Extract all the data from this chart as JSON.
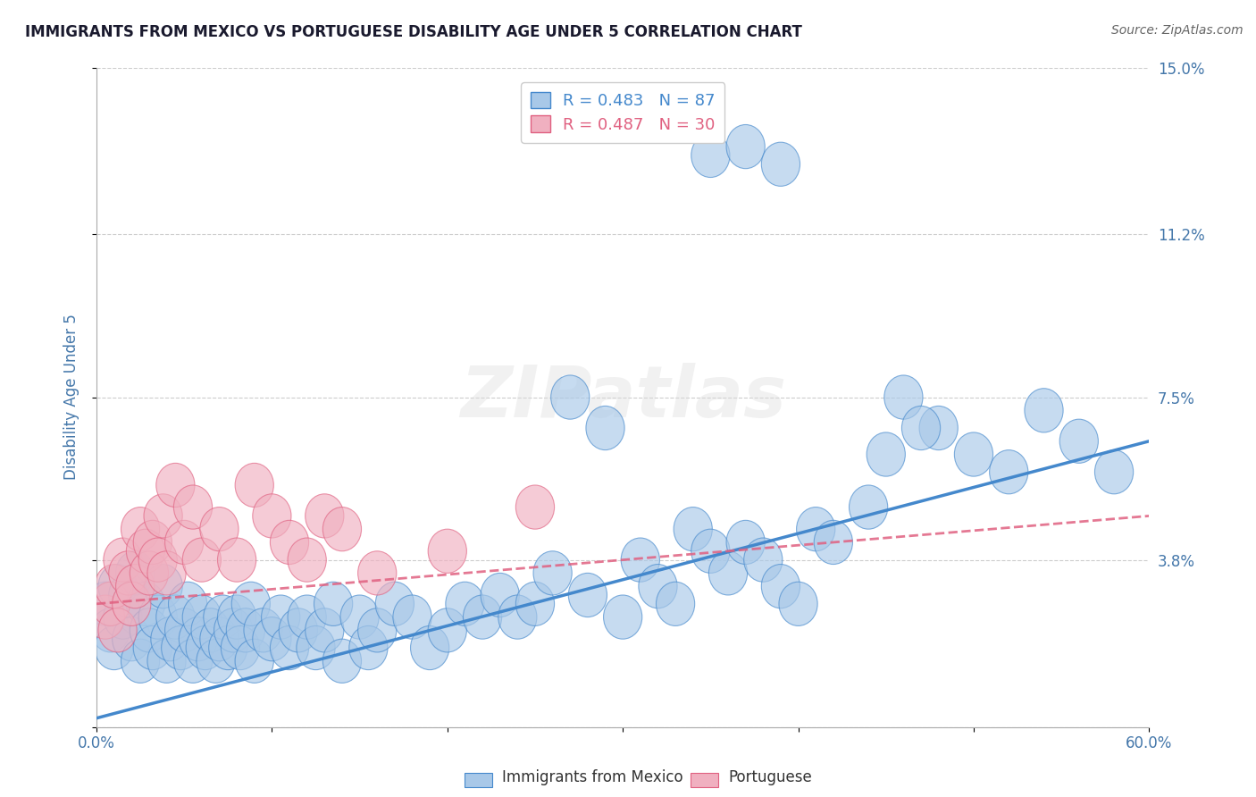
{
  "title": "IMMIGRANTS FROM MEXICO VS PORTUGUESE DISABILITY AGE UNDER 5 CORRELATION CHART",
  "source": "Source: ZipAtlas.com",
  "ylabel": "Disability Age Under 5",
  "legend_label1": "Immigrants from Mexico",
  "legend_label2": "Portuguese",
  "legend_r1": "R = 0.483",
  "legend_n1": "N = 87",
  "legend_r2": "R = 0.487",
  "legend_n2": "N = 30",
  "xlim": [
    0.0,
    0.6
  ],
  "ylim": [
    0.0,
    0.15
  ],
  "yticks": [
    0.0,
    0.038,
    0.075,
    0.112,
    0.15
  ],
  "ytick_labels": [
    "",
    "3.8%",
    "7.5%",
    "11.2%",
    "15.0%"
  ],
  "xtick_labels_show": [
    "0.0%",
    "60.0%"
  ],
  "xtick_positions_show": [
    0.0,
    0.6
  ],
  "color_blue": "#A8C8E8",
  "color_pink": "#F0B0C0",
  "line_color_blue": "#4488CC",
  "line_color_pink": "#E06080",
  "background_color": "#FFFFFF",
  "grid_color": "#CCCCCC",
  "axis_label_color": "#4477AA",
  "watermark": "ZIPatlas",
  "blue_dots_x": [
    0.005,
    0.008,
    0.01,
    0.012,
    0.015,
    0.018,
    0.02,
    0.022,
    0.025,
    0.028,
    0.03,
    0.032,
    0.035,
    0.038,
    0.04,
    0.042,
    0.045,
    0.048,
    0.05,
    0.052,
    0.055,
    0.058,
    0.06,
    0.062,
    0.065,
    0.068,
    0.07,
    0.072,
    0.075,
    0.078,
    0.08,
    0.082,
    0.085,
    0.088,
    0.09,
    0.095,
    0.1,
    0.105,
    0.11,
    0.115,
    0.12,
    0.125,
    0.13,
    0.135,
    0.14,
    0.15,
    0.155,
    0.16,
    0.17,
    0.18,
    0.19,
    0.2,
    0.21,
    0.22,
    0.23,
    0.24,
    0.25,
    0.26,
    0.28,
    0.3,
    0.31,
    0.32,
    0.33,
    0.34,
    0.35,
    0.36,
    0.37,
    0.38,
    0.39,
    0.4,
    0.41,
    0.42,
    0.44,
    0.46,
    0.48,
    0.5,
    0.52,
    0.54,
    0.56,
    0.58,
    0.35,
    0.37,
    0.39,
    0.27,
    0.29,
    0.45,
    0.47
  ],
  "blue_dots_y": [
    0.028,
    0.022,
    0.018,
    0.032,
    0.025,
    0.03,
    0.02,
    0.035,
    0.015,
    0.028,
    0.022,
    0.018,
    0.025,
    0.032,
    0.015,
    0.02,
    0.025,
    0.018,
    0.022,
    0.028,
    0.015,
    0.02,
    0.025,
    0.018,
    0.022,
    0.015,
    0.02,
    0.025,
    0.018,
    0.022,
    0.025,
    0.018,
    0.022,
    0.028,
    0.015,
    0.022,
    0.02,
    0.025,
    0.018,
    0.022,
    0.025,
    0.018,
    0.022,
    0.028,
    0.015,
    0.025,
    0.018,
    0.022,
    0.028,
    0.025,
    0.018,
    0.022,
    0.028,
    0.025,
    0.03,
    0.025,
    0.028,
    0.035,
    0.03,
    0.025,
    0.038,
    0.032,
    0.028,
    0.045,
    0.04,
    0.035,
    0.042,
    0.038,
    0.032,
    0.028,
    0.045,
    0.042,
    0.05,
    0.075,
    0.068,
    0.062,
    0.058,
    0.072,
    0.065,
    0.058,
    0.13,
    0.132,
    0.128,
    0.075,
    0.068,
    0.062,
    0.068
  ],
  "pink_dots_x": [
    0.005,
    0.008,
    0.01,
    0.012,
    0.015,
    0.018,
    0.02,
    0.022,
    0.025,
    0.028,
    0.03,
    0.032,
    0.035,
    0.038,
    0.04,
    0.045,
    0.05,
    0.055,
    0.06,
    0.07,
    0.08,
    0.09,
    0.1,
    0.11,
    0.12,
    0.13,
    0.14,
    0.16,
    0.2,
    0.25
  ],
  "pink_dots_y": [
    0.025,
    0.028,
    0.032,
    0.022,
    0.038,
    0.035,
    0.028,
    0.032,
    0.045,
    0.04,
    0.035,
    0.042,
    0.038,
    0.048,
    0.035,
    0.055,
    0.042,
    0.05,
    0.038,
    0.045,
    0.038,
    0.055,
    0.048,
    0.042,
    0.038,
    0.048,
    0.045,
    0.035,
    0.04,
    0.05
  ],
  "blue_trend_x": [
    0.0,
    0.6
  ],
  "blue_trend_y": [
    0.002,
    0.065
  ],
  "pink_trend_x": [
    0.0,
    0.6
  ],
  "pink_trend_y": [
    0.028,
    0.048
  ]
}
